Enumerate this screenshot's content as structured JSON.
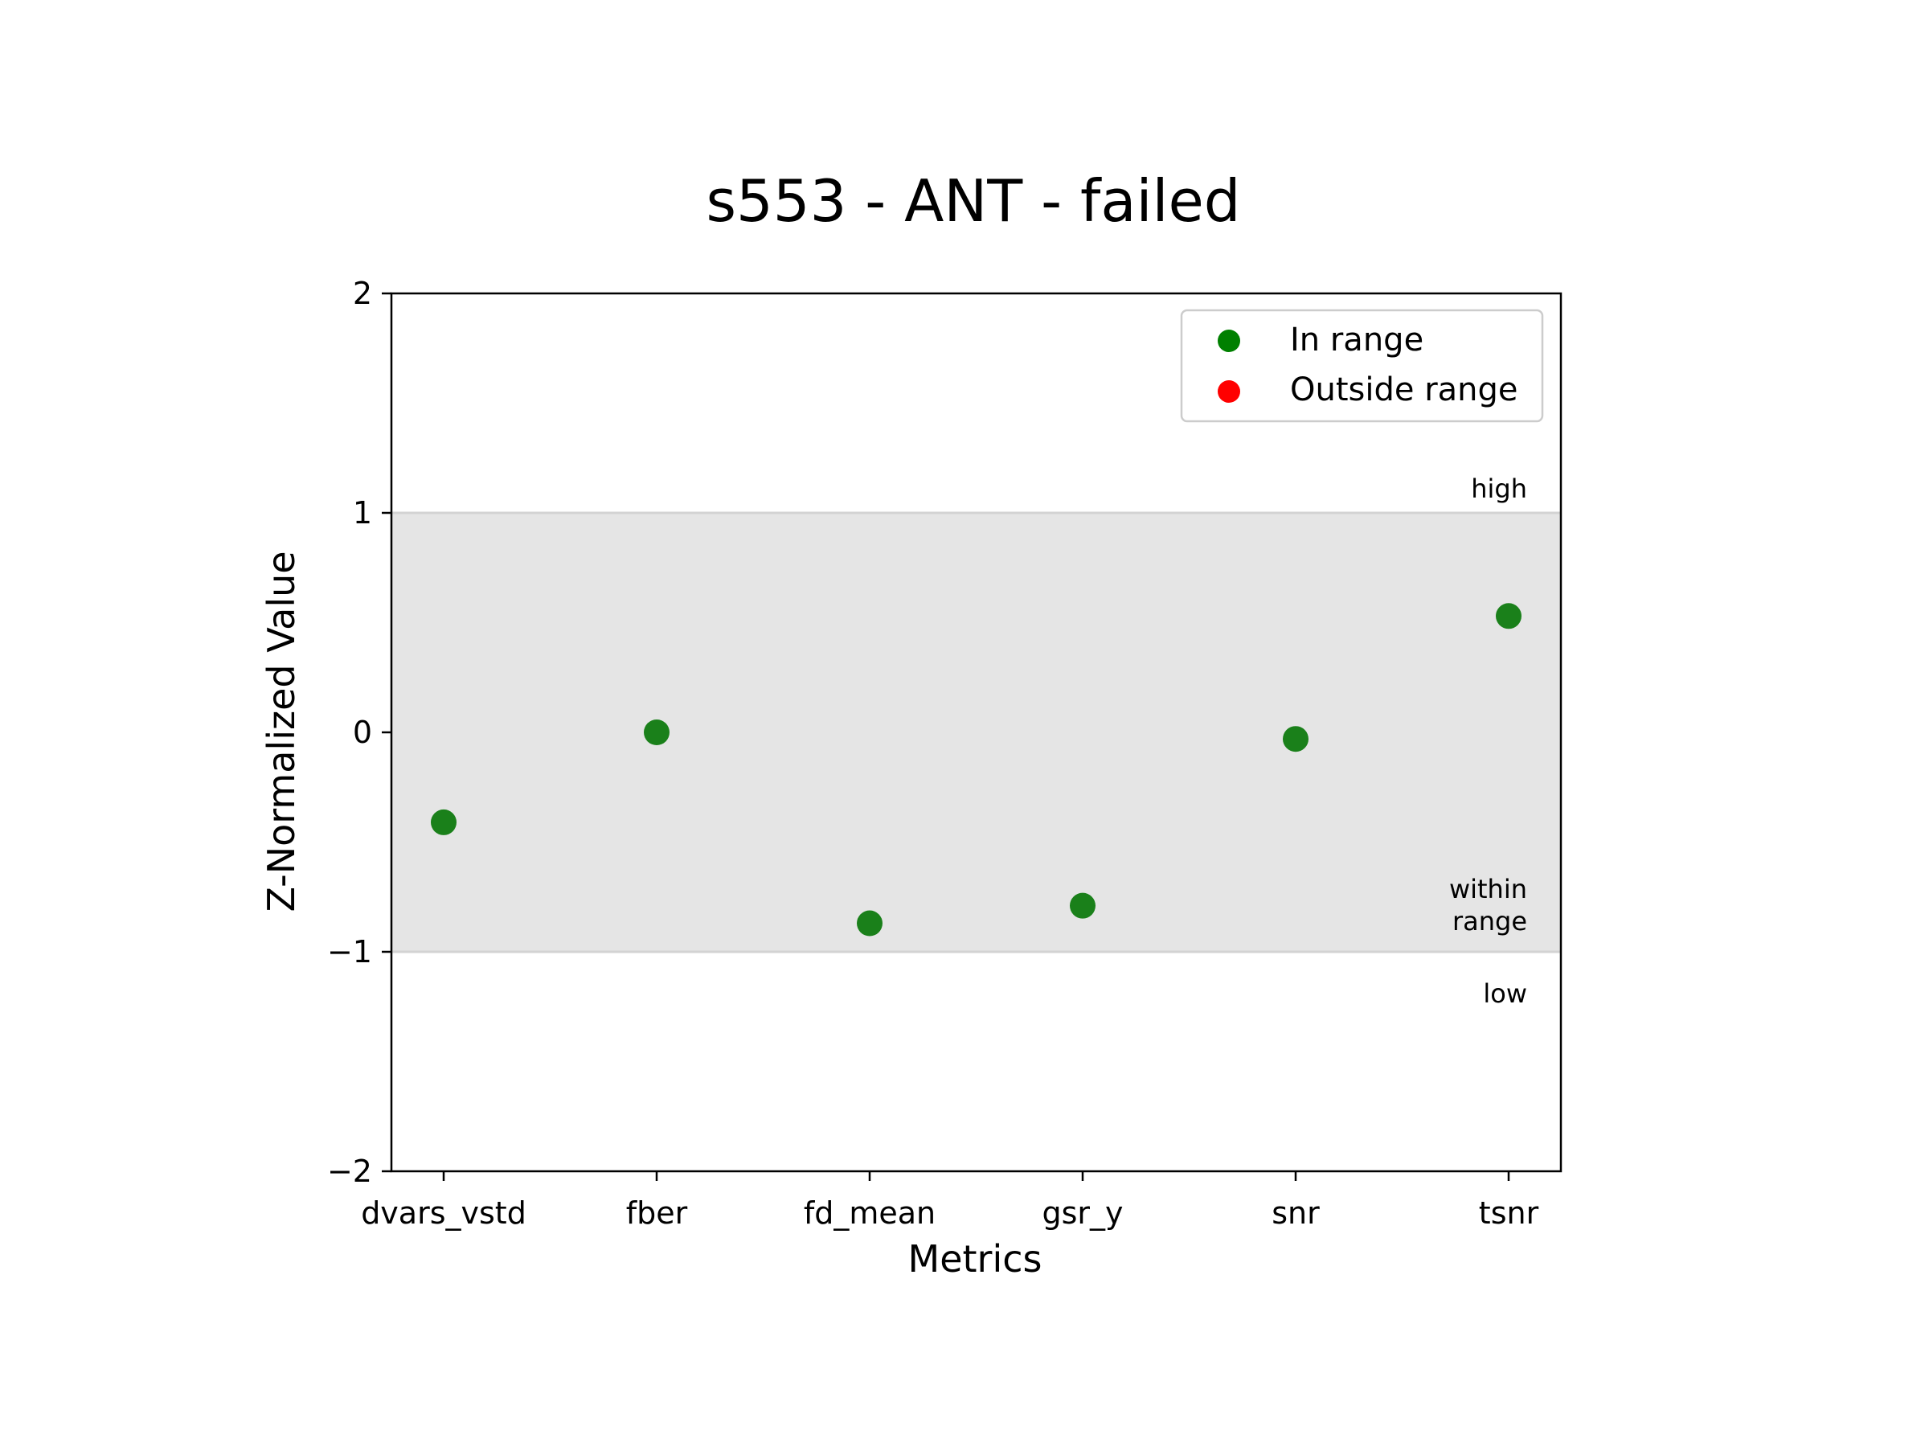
{
  "chart_data": {
    "type": "scatter",
    "title": "s553 - ANT - failed",
    "xlabel": "Metrics",
    "ylabel": "Z-Normalized Value",
    "categories": [
      "dvars_vstd",
      "fber",
      "fd_mean",
      "gsr_y",
      "snr",
      "tsnr"
    ],
    "values": [
      -0.41,
      0.0,
      -0.87,
      -0.79,
      -0.03,
      0.53
    ],
    "ylim": [
      -2,
      2
    ],
    "yticks": [
      2,
      1,
      0,
      -1,
      -2
    ],
    "ytick_labels": [
      "2",
      "1",
      "0",
      "−1",
      "−2"
    ],
    "range_band": [
      -1,
      1
    ],
    "band_labels": {
      "high": "high",
      "within_line1": "within",
      "within_line2": "range",
      "low": "low"
    },
    "grid": false,
    "legend": {
      "placement": "top-right",
      "entries": [
        {
          "label": "In range",
          "color": "#008000"
        },
        {
          "label": "Outside range",
          "color": "#ff0000"
        }
      ]
    },
    "colors": {
      "point": "#1a801a",
      "band": "#e5e5e5",
      "band_line": "#d3d3d3"
    }
  }
}
